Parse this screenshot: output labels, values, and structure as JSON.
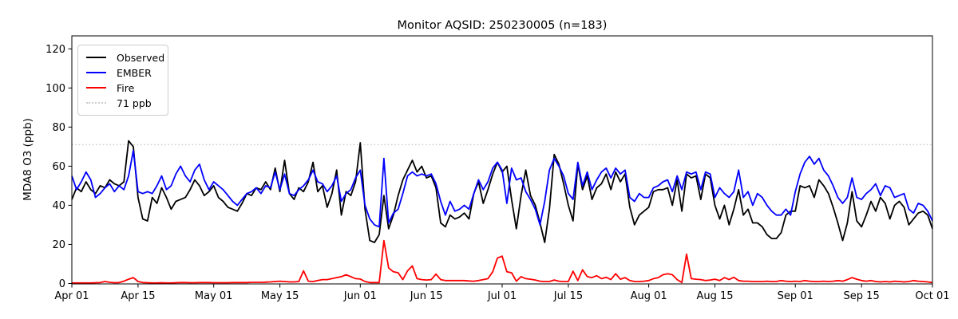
{
  "chart_data": {
    "type": "line",
    "title": "Monitor AQSID: 250230005 (n=183)",
    "xlabel": "",
    "ylabel": "MDA8 O3 (ppb)",
    "n": 183,
    "n_points": 183,
    "x_start": "Apr 01",
    "x_end": "Oct 01",
    "ylim": [
      0,
      126
    ],
    "grid": false,
    "legend_position": "upper-left",
    "yticks": [
      0,
      20,
      40,
      60,
      80,
      100,
      120
    ],
    "xticks": [
      {
        "day": 1,
        "label": "Apr 01"
      },
      {
        "day": 15,
        "label": "Apr 15"
      },
      {
        "day": 31,
        "label": "May 01"
      },
      {
        "day": 45,
        "label": "May 15"
      },
      {
        "day": 62,
        "label": "Jun 01"
      },
      {
        "day": 76,
        "label": "Jun 15"
      },
      {
        "day": 92,
        "label": "Jul 01"
      },
      {
        "day": 106,
        "label": "Jul 15"
      },
      {
        "day": 123,
        "label": "Aug 01"
      },
      {
        "day": 137,
        "label": "Aug 15"
      },
      {
        "day": 154,
        "label": "Sep 01"
      },
      {
        "day": 168,
        "label": "Sep 15"
      },
      {
        "day": 183,
        "label": "Oct 01"
      }
    ],
    "threshold": {
      "label": "71 ppb",
      "value": 71,
      "color": "#cccccc",
      "style": "dotted"
    },
    "series": [
      {
        "name": "Observed",
        "color": "#000000",
        "style": "solid",
        "values": [
          43,
          49,
          47,
          52,
          48,
          46,
          50,
          49,
          53,
          51,
          50,
          52,
          73,
          70,
          44,
          33,
          32,
          44,
          41,
          49,
          44,
          38,
          42,
          43,
          44,
          48,
          53,
          50,
          45,
          47,
          50,
          44,
          42,
          39,
          38,
          37,
          41,
          46,
          45,
          49,
          48,
          52,
          48,
          59,
          47,
          63,
          46,
          43,
          49,
          47,
          52,
          62,
          47,
          50,
          39,
          46,
          58,
          35,
          47,
          45,
          52,
          72,
          38,
          22,
          21,
          25,
          45,
          28,
          35,
          45,
          53,
          58,
          63,
          57,
          60,
          54,
          55,
          49,
          31,
          29,
          35,
          33,
          34,
          36,
          33,
          46,
          52,
          41,
          48,
          56,
          62,
          57,
          60,
          43,
          28,
          45,
          58,
          45,
          40,
          31,
          21,
          38,
          66,
          61,
          51,
          40,
          32,
          61,
          48,
          55,
          43,
          49,
          51,
          56,
          48,
          57,
          52,
          56,
          39,
          30,
          35,
          37,
          39,
          47,
          48,
          48,
          49,
          40,
          53,
          37,
          56,
          54,
          55,
          43,
          56,
          54,
          40,
          33,
          40,
          30,
          38,
          48,
          35,
          38,
          31,
          31,
          29,
          25,
          23,
          23,
          26,
          35,
          37,
          37,
          50,
          49,
          50,
          44,
          53,
          50,
          46,
          39,
          31,
          22,
          31,
          47,
          32,
          29,
          35,
          42,
          37,
          44,
          41,
          33,
          40,
          42,
          39,
          30,
          33,
          36,
          37,
          35,
          28
        ]
      },
      {
        "name": "EMBER",
        "color": "#0000ff",
        "style": "solid",
        "values": [
          55,
          48,
          52,
          57,
          53,
          44,
          46,
          49,
          51,
          47,
          50,
          48,
          55,
          68,
          47,
          46,
          47,
          46,
          50,
          55,
          48,
          50,
          56,
          60,
          55,
          52,
          58,
          61,
          53,
          48,
          52,
          50,
          48,
          45,
          42,
          40,
          43,
          46,
          47,
          49,
          46,
          50,
          49,
          57,
          48,
          56,
          46,
          45,
          48,
          50,
          53,
          58,
          52,
          51,
          47,
          50,
          55,
          42,
          46,
          48,
          54,
          58,
          40,
          33,
          30,
          29,
          64,
          31,
          36,
          38,
          46,
          55,
          57,
          55,
          56,
          55,
          56,
          51,
          42,
          35,
          42,
          37,
          38,
          40,
          38,
          46,
          53,
          48,
          52,
          59,
          62,
          58,
          41,
          59,
          53,
          54,
          47,
          43,
          38,
          30,
          42,
          58,
          64,
          60,
          55,
          46,
          43,
          62,
          50,
          57,
          48,
          53,
          57,
          59,
          54,
          59,
          56,
          58,
          44,
          42,
          46,
          44,
          44,
          49,
          50,
          52,
          53,
          47,
          55,
          48,
          57,
          56,
          57,
          48,
          57,
          56,
          44,
          49,
          46,
          44,
          47,
          58,
          44,
          47,
          40,
          46,
          44,
          40,
          37,
          35,
          35,
          38,
          35,
          47,
          56,
          62,
          65,
          61,
          64,
          58,
          55,
          50,
          44,
          41,
          44,
          54,
          44,
          43,
          46,
          48,
          51,
          45,
          50,
          49,
          44,
          45,
          46,
          38,
          36,
          41,
          40,
          37,
          32
        ]
      },
      {
        "name": "Fire",
        "color": "#ff0000",
        "style": "solid",
        "values": [
          0.3,
          0.3,
          0.3,
          0.3,
          0.3,
          0.4,
          0.5,
          1.0,
          0.6,
          0.4,
          0.5,
          1.2,
          2.2,
          3.0,
          1.0,
          0.5,
          0.4,
          0.3,
          0.3,
          0.4,
          0.3,
          0.3,
          0.4,
          0.5,
          0.5,
          0.4,
          0.4,
          0.5,
          0.5,
          0.5,
          0.4,
          0.4,
          0.4,
          0.4,
          0.5,
          0.5,
          0.5,
          0.5,
          0.6,
          0.6,
          0.6,
          0.7,
          0.8,
          1.0,
          1.2,
          1.0,
          0.8,
          0.8,
          1.0,
          6.5,
          1.2,
          1.0,
          1.5,
          2.0,
          2.0,
          2.5,
          3.0,
          3.5,
          4.5,
          3.5,
          2.5,
          2.3,
          1.0,
          0.5,
          0.5,
          0.5,
          22.0,
          8.0,
          6.0,
          5.5,
          2.0,
          6.5,
          9.0,
          2.5,
          2.0,
          1.8,
          2.0,
          4.8,
          2.0,
          1.5,
          1.5,
          1.5,
          1.5,
          1.5,
          1.3,
          1.2,
          1.5,
          2.0,
          2.5,
          6.0,
          13.0,
          14.0,
          6.0,
          5.5,
          1.2,
          3.5,
          2.5,
          2.2,
          1.8,
          1.2,
          1.0,
          1.0,
          1.8,
          1.2,
          1.0,
          1.0,
          6.3,
          1.5,
          7.0,
          3.5,
          3.0,
          4.0,
          2.5,
          3.2,
          2.0,
          5.0,
          2.2,
          3.0,
          1.5,
          1.0,
          1.0,
          1.2,
          1.5,
          2.5,
          3.0,
          4.5,
          5.0,
          4.5,
          2.0,
          0.5,
          15.0,
          2.5,
          2.2,
          2.0,
          1.5,
          1.8,
          2.2,
          1.5,
          3.0,
          2.0,
          3.2,
          1.5,
          1.2,
          1.2,
          1.0,
          1.0,
          1.0,
          1.2,
          1.0,
          1.0,
          1.5,
          1.2,
          1.0,
          1.2,
          1.0,
          1.5,
          1.2,
          1.0,
          1.0,
          1.2,
          1.0,
          1.2,
          1.5,
          1.2,
          2.0,
          3.0,
          2.2,
          1.5,
          1.2,
          1.5,
          1.0,
          0.8,
          1.0,
          0.8,
          1.2,
          1.0,
          0.8,
          1.0,
          1.5,
          1.2,
          1.0,
          0.8,
          0.5
        ]
      }
    ],
    "legend": {
      "items": [
        {
          "label": "Observed",
          "color": "#000000",
          "style": "solid"
        },
        {
          "label": "EMBER",
          "color": "#0000ff",
          "style": "solid"
        },
        {
          "label": "Fire",
          "color": "#ff0000",
          "style": "solid"
        },
        {
          "label": "71 ppb",
          "color": "#cccccc",
          "style": "dotted"
        }
      ]
    }
  }
}
